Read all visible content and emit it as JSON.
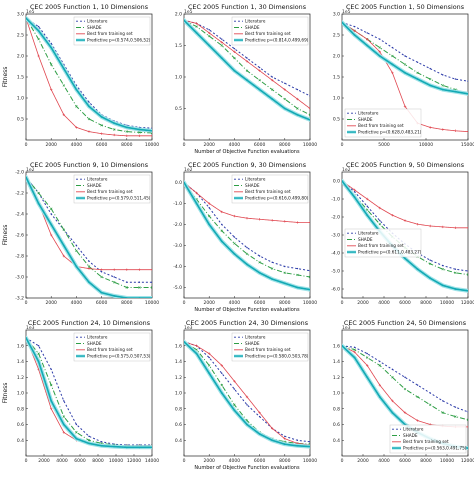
{
  "figure": {
    "colors": {
      "literature": "#2b3aa8",
      "shade": "#2e9e45",
      "best": "#e0464f",
      "predictive": "#13a9b4",
      "predictive_band": "#9fe3e8"
    },
    "legend_labels": {
      "literature": "Literature",
      "shade": "SHADE",
      "best": "Best from training set"
    },
    "shared_xlabel": "Number of Objective Function evaluations",
    "shared_ylabel": "Fitness"
  },
  "chart_data": [
    {
      "type": "line",
      "title": "CEC 2005 Function 1, 10 Dimensions",
      "exponent": "1e5",
      "ylabel": "Fitness",
      "xlabel": "",
      "xlim": [
        0,
        10000
      ],
      "ylim": [
        0,
        3.0
      ],
      "xticks": [
        0,
        2000,
        4000,
        6000,
        8000,
        10000
      ],
      "yticks": [
        0.5,
        1.0,
        1.5,
        2.0,
        2.5,
        3.0
      ],
      "legend_position": "upper-right",
      "show_legend": true,
      "predictive_label": "Predictive p=(0.574,0.506,52)",
      "x": [
        0,
        1000,
        2000,
        3000,
        4000,
        5000,
        6000,
        7000,
        8000,
        9000,
        10000
      ],
      "series": [
        {
          "key": "literature",
          "values": [
            2.9,
            2.7,
            2.3,
            1.8,
            1.3,
            0.9,
            0.6,
            0.45,
            0.35,
            0.3,
            0.28
          ]
        },
        {
          "key": "shade",
          "values": [
            2.9,
            2.4,
            1.8,
            1.3,
            0.8,
            0.5,
            0.35,
            0.25,
            0.2,
            0.18,
            0.17
          ]
        },
        {
          "key": "best",
          "values": [
            2.9,
            2.0,
            1.2,
            0.6,
            0.3,
            0.2,
            0.15,
            0.12,
            0.1,
            0.1,
            0.1
          ]
        },
        {
          "key": "predictive",
          "values": [
            2.9,
            2.6,
            2.2,
            1.7,
            1.2,
            0.8,
            0.55,
            0.4,
            0.3,
            0.25,
            0.22
          ]
        }
      ]
    },
    {
      "type": "line",
      "title": "CEC 2005 Function 1, 30 Dimensions",
      "exponent": "1e5",
      "ylabel": "",
      "xlabel": "Number of Objective Function evaluations",
      "xlim": [
        0,
        10000
      ],
      "ylim": [
        0,
        2.0
      ],
      "xticks": [
        0,
        2000,
        4000,
        6000,
        8000,
        10000
      ],
      "yticks": [
        0.5,
        1.0,
        1.5,
        2.0
      ],
      "legend_position": "upper-right",
      "show_legend": true,
      "predictive_label": "Predictive p=(0.814,0.499,69)",
      "x": [
        0,
        1000,
        2000,
        3000,
        4000,
        5000,
        6000,
        7000,
        8000,
        9000,
        10000
      ],
      "series": [
        {
          "key": "literature",
          "values": [
            1.9,
            1.85,
            1.75,
            1.6,
            1.45,
            1.3,
            1.15,
            1.0,
            0.9,
            0.8,
            0.7
          ]
        },
        {
          "key": "shade",
          "values": [
            1.9,
            1.8,
            1.65,
            1.5,
            1.3,
            1.1,
            0.95,
            0.8,
            0.65,
            0.5,
            0.4
          ]
        },
        {
          "key": "best",
          "values": [
            1.9,
            1.85,
            1.7,
            1.55,
            1.4,
            1.25,
            1.1,
            0.95,
            0.8,
            0.65,
            0.5
          ]
        },
        {
          "key": "predictive",
          "values": [
            1.9,
            1.7,
            1.5,
            1.3,
            1.1,
            0.95,
            0.8,
            0.65,
            0.5,
            0.4,
            0.32
          ]
        }
      ]
    },
    {
      "type": "line",
      "title": "CEC 2005 Function 1, 50 Dimensions",
      "exponent": "1e5",
      "ylabel": "",
      "xlabel": "",
      "xlim": [
        0,
        15000
      ],
      "ylim": [
        0,
        3.0
      ],
      "xticks": [
        0,
        5000,
        10000,
        15000
      ],
      "yticks": [
        0.5,
        1.0,
        1.5,
        2.0,
        2.5,
        3.0
      ],
      "legend_position": "lower-left",
      "show_legend": true,
      "predictive_label": "Predictive p=(0.628,0.483,21)",
      "x": [
        0,
        1500,
        3000,
        4500,
        6000,
        7500,
        9000,
        10500,
        12000,
        13500,
        15000
      ],
      "series": [
        {
          "key": "literature",
          "values": [
            2.8,
            2.7,
            2.55,
            2.4,
            2.2,
            2.0,
            1.85,
            1.7,
            1.55,
            1.45,
            1.4
          ]
        },
        {
          "key": "shade",
          "values": [
            2.8,
            2.6,
            2.4,
            2.2,
            2.0,
            1.8,
            1.6,
            1.45,
            1.3,
            1.2,
            1.1
          ]
        },
        {
          "key": "best",
          "values": [
            2.8,
            2.6,
            2.4,
            2.1,
            1.6,
            0.8,
            0.4,
            0.3,
            0.25,
            0.22,
            0.2
          ]
        },
        {
          "key": "predictive",
          "values": [
            2.8,
            2.5,
            2.25,
            2.0,
            1.8,
            1.6,
            1.45,
            1.3,
            1.2,
            1.15,
            1.1
          ]
        }
      ]
    },
    {
      "type": "line",
      "title": "CEC 2005 Function 9, 10 Dimensions",
      "exponent": "1e2",
      "ylabel": "Fitness",
      "xlabel": "",
      "xlim": [
        0,
        10000
      ],
      "ylim": [
        -3.2,
        -2.0
      ],
      "xticks": [
        0,
        2000,
        4000,
        6000,
        8000,
        10000
      ],
      "yticks": [
        -3.2,
        -3.0,
        -2.8,
        -2.6,
        -2.4,
        -2.2,
        -2.0
      ],
      "legend_position": "upper-right",
      "show_legend": true,
      "predictive_label": "Predictive p=(0.579,0.511,45)",
      "x": [
        0,
        1000,
        2000,
        3000,
        4000,
        5000,
        6000,
        7000,
        8000,
        9000,
        10000
      ],
      "series": [
        {
          "key": "literature",
          "values": [
            -2.05,
            -2.2,
            -2.4,
            -2.55,
            -2.7,
            -2.85,
            -2.95,
            -3.0,
            -3.05,
            -3.05,
            -3.05
          ]
        },
        {
          "key": "shade",
          "values": [
            -2.05,
            -2.2,
            -2.35,
            -2.55,
            -2.75,
            -2.9,
            -3.0,
            -3.05,
            -3.1,
            -3.1,
            -3.1
          ]
        },
        {
          "key": "best",
          "values": [
            -2.05,
            -2.3,
            -2.6,
            -2.8,
            -2.9,
            -2.92,
            -2.93,
            -2.93,
            -2.93,
            -2.93,
            -2.93
          ]
        },
        {
          "key": "predictive",
          "values": [
            -2.05,
            -2.3,
            -2.5,
            -2.7,
            -2.9,
            -3.05,
            -3.15,
            -3.18,
            -3.2,
            -3.2,
            -3.2
          ]
        }
      ]
    },
    {
      "type": "line",
      "title": "CEC 2005 Function 9, 30 Dimensions",
      "exponent": "1e2",
      "ylabel": "",
      "xlabel": "Number of Objective Function evaluations",
      "xlim": [
        0,
        10000
      ],
      "ylim": [
        -5.5,
        0.5
      ],
      "xticks": [
        0,
        2000,
        4000,
        6000,
        8000,
        10000
      ],
      "yticks": [
        -5.0,
        -4.0,
        -3.0,
        -2.0,
        -1.0,
        0.0
      ],
      "legend_position": "upper-right",
      "show_legend": true,
      "predictive_label": "Predictive p=(0.616,0.499,80)",
      "x": [
        0,
        1000,
        2000,
        3000,
        4000,
        5000,
        6000,
        7000,
        8000,
        9000,
        10000
      ],
      "series": [
        {
          "key": "literature",
          "values": [
            0.0,
            -0.5,
            -1.2,
            -2.0,
            -2.6,
            -3.1,
            -3.5,
            -3.8,
            -4.0,
            -4.1,
            -4.2
          ]
        },
        {
          "key": "shade",
          "values": [
            0.0,
            -0.8,
            -1.6,
            -2.3,
            -2.9,
            -3.4,
            -3.8,
            -4.1,
            -4.3,
            -4.4,
            -4.5
          ]
        },
        {
          "key": "best",
          "values": [
            0.0,
            -0.5,
            -1.0,
            -1.4,
            -1.6,
            -1.7,
            -1.75,
            -1.8,
            -1.85,
            -1.9,
            -1.9
          ]
        },
        {
          "key": "predictive",
          "values": [
            0.0,
            -1.0,
            -2.0,
            -2.8,
            -3.4,
            -3.9,
            -4.3,
            -4.6,
            -4.8,
            -5.0,
            -5.1
          ]
        }
      ]
    },
    {
      "type": "line",
      "title": "CEC 2005 Function 9, 50 Dimensions",
      "exponent": "1e2",
      "ylabel": "",
      "xlabel": "",
      "xlim": [
        0,
        12000
      ],
      "ylim": [
        -6.5,
        0.5
      ],
      "xticks": [
        0,
        2000,
        4000,
        6000,
        8000,
        10000,
        12000
      ],
      "yticks": [
        -6.0,
        -5.0,
        -4.0,
        -3.0,
        -2.0,
        -1.0,
        0.0
      ],
      "legend_position": "center-left",
      "show_legend": true,
      "predictive_label": "Predictive p=(0.611,0.483,27)",
      "x": [
        0,
        1200,
        2400,
        3600,
        4800,
        6000,
        7200,
        8400,
        9600,
        10800,
        12000
      ],
      "series": [
        {
          "key": "literature",
          "values": [
            0.0,
            -0.6,
            -1.4,
            -2.2,
            -2.9,
            -3.5,
            -4.0,
            -4.4,
            -4.7,
            -4.9,
            -5.0
          ]
        },
        {
          "key": "shade",
          "values": [
            0.0,
            -0.8,
            -1.6,
            -2.4,
            -3.1,
            -3.7,
            -4.2,
            -4.6,
            -4.9,
            -5.1,
            -5.2
          ]
        },
        {
          "key": "best",
          "values": [
            0.0,
            -0.5,
            -1.0,
            -1.5,
            -1.9,
            -2.2,
            -2.4,
            -2.5,
            -2.55,
            -2.6,
            -2.6
          ]
        },
        {
          "key": "predictive",
          "values": [
            0.0,
            -0.9,
            -1.9,
            -2.8,
            -3.6,
            -4.3,
            -4.9,
            -5.4,
            -5.8,
            -6.0,
            -6.1
          ]
        }
      ]
    },
    {
      "type": "line",
      "title": "CEC 2005 Function 24, 10 Dimensions",
      "exponent": "1e3",
      "ylabel": "Fitness",
      "xlabel": "",
      "xlim": [
        0,
        14000
      ],
      "ylim": [
        0.2,
        1.8
      ],
      "xticks": [
        0,
        2000,
        4000,
        6000,
        8000,
        10000,
        12000,
        14000
      ],
      "yticks": [
        0.4,
        0.6,
        0.8,
        1.0,
        1.2,
        1.4,
        1.6
      ],
      "legend_position": "upper-right",
      "show_legend": true,
      "predictive_label": "Predictive p=(0.575,0.507,53)",
      "x": [
        0,
        1400,
        2800,
        4200,
        5600,
        7000,
        8400,
        9800,
        11200,
        12600,
        14000
      ],
      "series": [
        {
          "key": "literature",
          "values": [
            1.7,
            1.6,
            1.3,
            0.9,
            0.6,
            0.45,
            0.38,
            0.35,
            0.34,
            0.34,
            0.34
          ]
        },
        {
          "key": "shade",
          "values": [
            1.7,
            1.5,
            1.1,
            0.7,
            0.5,
            0.4,
            0.36,
            0.34,
            0.33,
            0.33,
            0.33
          ]
        },
        {
          "key": "best",
          "values": [
            1.7,
            1.3,
            0.8,
            0.5,
            0.4,
            0.36,
            0.34,
            0.33,
            0.33,
            0.33,
            0.33
          ]
        },
        {
          "key": "predictive",
          "values": [
            1.7,
            1.4,
            0.9,
            0.6,
            0.42,
            0.36,
            0.33,
            0.32,
            0.31,
            0.31,
            0.31
          ]
        }
      ]
    },
    {
      "type": "line",
      "title": "CEC 2005 Function 24, 30 Dimensions",
      "exponent": "1e3",
      "ylabel": "",
      "xlabel": "Number of Objective Function evaluations",
      "xlim": [
        0,
        10000
      ],
      "ylim": [
        0.2,
        1.8
      ],
      "xticks": [
        0,
        2000,
        4000,
        6000,
        8000,
        10000
      ],
      "yticks": [
        0.4,
        0.6,
        0.8,
        1.0,
        1.2,
        1.4,
        1.6
      ],
      "legend_position": "upper-right",
      "show_legend": true,
      "predictive_label": "Predictive p=(0.580,0.503,78)",
      "x": [
        0,
        1000,
        2000,
        3000,
        4000,
        5000,
        6000,
        7000,
        8000,
        9000,
        10000
      ],
      "series": [
        {
          "key": "literature",
          "values": [
            1.65,
            1.6,
            1.45,
            1.25,
            1.05,
            0.85,
            0.7,
            0.55,
            0.45,
            0.4,
            0.38
          ]
        },
        {
          "key": "shade",
          "values": [
            1.65,
            1.55,
            1.35,
            1.1,
            0.85,
            0.65,
            0.5,
            0.42,
            0.38,
            0.36,
            0.35
          ]
        },
        {
          "key": "best",
          "values": [
            1.65,
            1.6,
            1.5,
            1.35,
            1.15,
            0.95,
            0.75,
            0.55,
            0.42,
            0.36,
            0.34
          ]
        },
        {
          "key": "predictive",
          "values": [
            1.65,
            1.5,
            1.25,
            1.0,
            0.78,
            0.6,
            0.48,
            0.4,
            0.35,
            0.33,
            0.32
          ]
        }
      ]
    },
    {
      "type": "line",
      "title": "CEC 2005 Function 24, 50 Dimensions",
      "exponent": "1e3",
      "ylabel": "",
      "xlabel": "",
      "xlim": [
        0,
        12000
      ],
      "ylim": [
        0.2,
        1.8
      ],
      "xticks": [
        0,
        2000,
        4000,
        6000,
        8000,
        10000,
        12000
      ],
      "yticks": [
        0.4,
        0.6,
        0.8,
        1.0,
        1.2,
        1.4,
        1.6
      ],
      "legend_position": "lower-right",
      "show_legend": true,
      "predictive_label": "Predictive p=(0.563,0.491,75)",
      "x": [
        0,
        1200,
        2400,
        3600,
        4800,
        6000,
        7200,
        8400,
        9600,
        10800,
        12000
      ],
      "series": [
        {
          "key": "literature",
          "values": [
            1.6,
            1.58,
            1.5,
            1.4,
            1.3,
            1.2,
            1.1,
            1.0,
            0.9,
            0.82,
            0.76
          ]
        },
        {
          "key": "shade",
          "values": [
            1.6,
            1.55,
            1.45,
            1.35,
            1.2,
            1.05,
            0.95,
            0.85,
            0.75,
            0.7,
            0.66
          ]
        },
        {
          "key": "best",
          "values": [
            1.6,
            1.52,
            1.35,
            1.1,
            0.9,
            0.75,
            0.65,
            0.6,
            0.58,
            0.57,
            0.57
          ]
        },
        {
          "key": "predictive",
          "values": [
            1.6,
            1.45,
            1.2,
            0.95,
            0.75,
            0.6,
            0.5,
            0.42,
            0.36,
            0.32,
            0.3
          ]
        }
      ]
    }
  ]
}
